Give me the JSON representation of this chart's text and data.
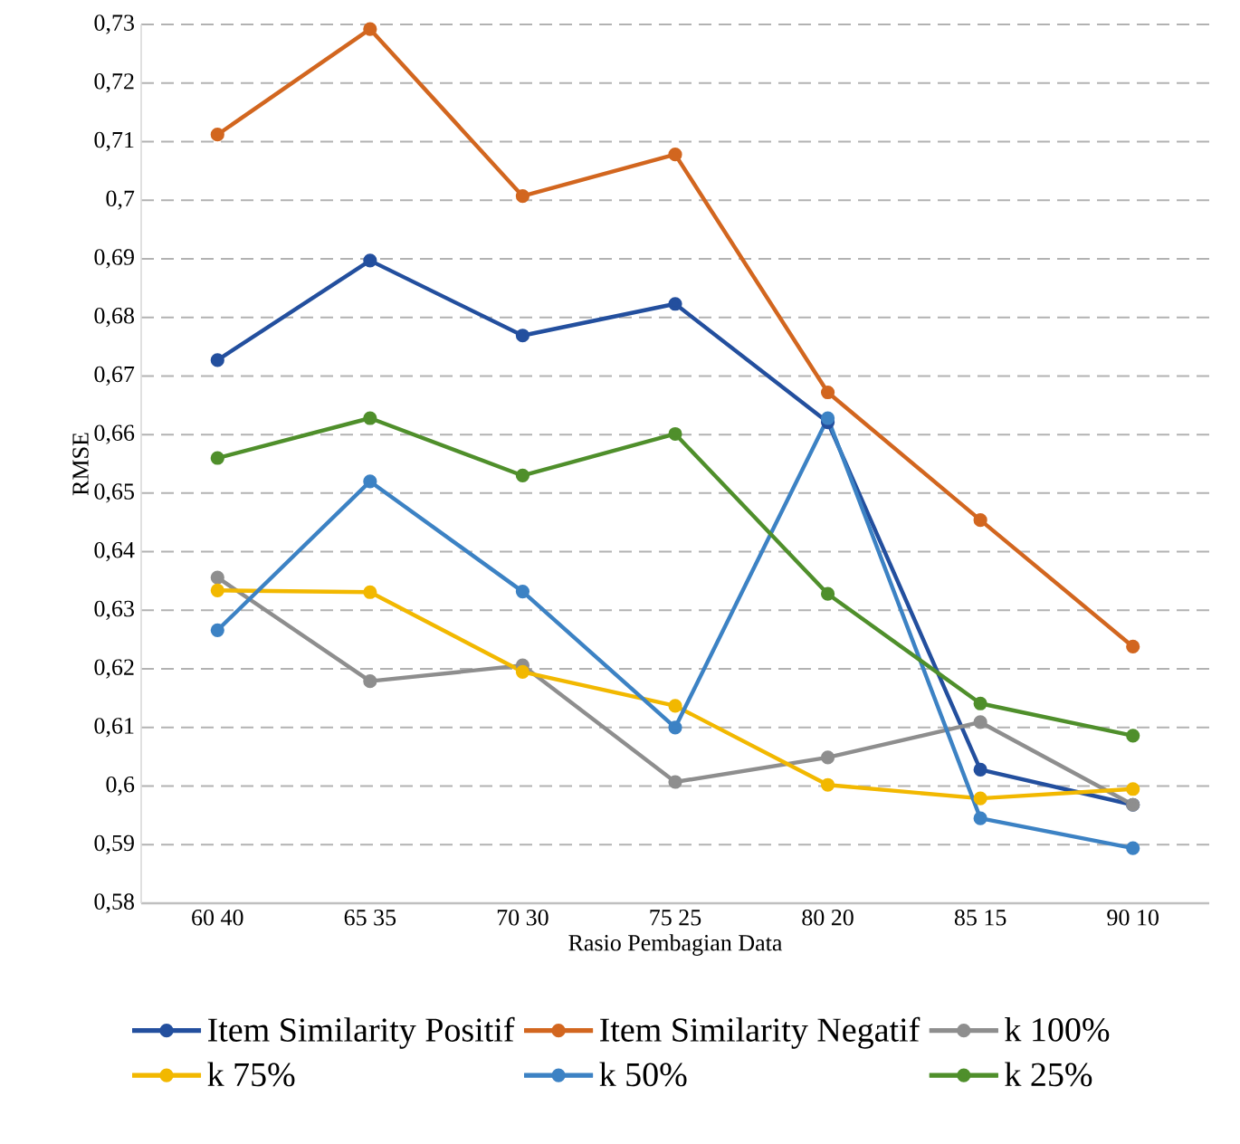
{
  "chart_data": {
    "type": "line",
    "xlabel": "Rasio Pembagian Data",
    "ylabel": "RMSE",
    "categories": [
      "60 40",
      "65 35",
      "70 30",
      "75 25",
      "80 20",
      "85 15",
      "90 10"
    ],
    "series": [
      {
        "name": "Item Similarity Positif",
        "color": "#234f9e",
        "values": [
          0.6727,
          0.6897,
          0.6769,
          0.6823,
          0.6621,
          0.6028,
          0.5968
        ]
      },
      {
        "name": "Item Similarity Negatif",
        "color": "#d2661f",
        "values": [
          0.7112,
          0.7292,
          0.7007,
          0.7078,
          0.6672,
          0.6454,
          0.6238
        ]
      },
      {
        "name": "k 100%",
        "color": "#8e8e8e",
        "values": [
          0.6356,
          0.6179,
          0.6206,
          0.6007,
          0.6049,
          0.6109,
          0.5968
        ]
      },
      {
        "name": "k 75%",
        "color": "#f2b800",
        "values": [
          0.6334,
          0.6331,
          0.6195,
          0.6137,
          0.6002,
          0.5979,
          0.5995
        ]
      },
      {
        "name": "k 50%",
        "color": "#3c82c4",
        "values": [
          0.6266,
          0.652,
          0.6332,
          0.61,
          0.6628,
          0.5945,
          0.5894
        ]
      },
      {
        "name": "k 25%",
        "color": "#4f8f2b",
        "values": [
          0.656,
          0.6628,
          0.653,
          0.6601,
          0.6328,
          0.6141,
          0.6086
        ]
      }
    ],
    "ylim": [
      0.58,
      0.73
    ],
    "yticks": [
      {
        "value": 0.58,
        "label": "0,58"
      },
      {
        "value": 0.59,
        "label": "0,59"
      },
      {
        "value": 0.6,
        "label": "0,6"
      },
      {
        "value": 0.61,
        "label": "0,61"
      },
      {
        "value": 0.62,
        "label": "0,62"
      },
      {
        "value": 0.63,
        "label": "0,63"
      },
      {
        "value": 0.64,
        "label": "0,64"
      },
      {
        "value": 0.65,
        "label": "0,65"
      },
      {
        "value": 0.66,
        "label": "0,66"
      },
      {
        "value": 0.67,
        "label": "0,67"
      },
      {
        "value": 0.68,
        "label": "0,68"
      },
      {
        "value": 0.69,
        "label": "0,69"
      },
      {
        "value": 0.7,
        "label": "0,7"
      },
      {
        "value": 0.71,
        "label": "0,71"
      },
      {
        "value": 0.72,
        "label": "0,72"
      },
      {
        "value": 0.73,
        "label": "0,73"
      }
    ],
    "grid": "y",
    "legend": "bottom",
    "marker": "circle",
    "line_style": "solid"
  }
}
